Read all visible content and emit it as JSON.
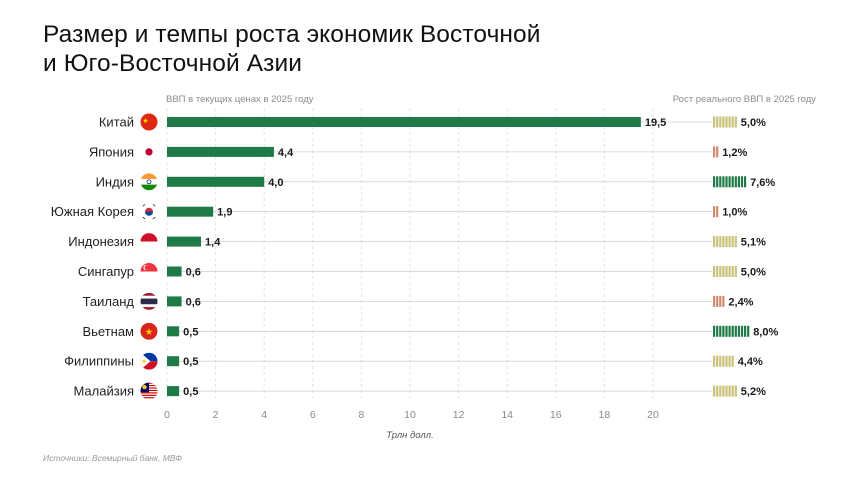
{
  "title_line1": "Размер и темпы роста экономик Восточной",
  "title_line2": "и Юго-Восточной Азии",
  "left_subtitle": "ВВП в текущих ценах в 2025 году",
  "right_subtitle": "Рост реального ВВП в 2025 году",
  "xlabel": "Трлн долл.",
  "source": "Источники: Всемирный банк, МВФ",
  "colors": {
    "bar": "#1e7a46",
    "growth_high": "#1e7a46",
    "growth_mid": "#c9c27a",
    "growth_low": "#d08a6f",
    "grid": "#d9d9d9"
  },
  "chart_data": {
    "type": "bar",
    "orientation": "horizontal",
    "categories": [
      "Китай",
      "Япония",
      "Индия",
      "Южная Корея",
      "Индонезия",
      "Сингапур",
      "Таиланд",
      "Вьетнам",
      "Филиппины",
      "Малайзия"
    ],
    "flags": [
      "china-flag-icon",
      "japan-flag-icon",
      "india-flag-icon",
      "south-korea-flag-icon",
      "indonesia-flag-icon",
      "singapore-flag-icon",
      "thailand-flag-icon",
      "vietnam-flag-icon",
      "philippines-flag-icon",
      "malaysia-flag-icon"
    ],
    "gdp_values": [
      19.5,
      4.4,
      4.0,
      1.9,
      1.4,
      0.6,
      0.6,
      0.5,
      0.5,
      0.5
    ],
    "gdp_labels": [
      "19,5",
      "4,4",
      "4,0",
      "1,9",
      "1,4",
      "0,6",
      "0,6",
      "0,5",
      "0,5",
      "0,5"
    ],
    "growth_values": [
      5.0,
      1.2,
      7.6,
      1.0,
      5.1,
      5.0,
      2.4,
      8.0,
      4.4,
      5.2
    ],
    "growth_labels": [
      "5,0%",
      "1,2%",
      "7,6%",
      "1,0%",
      "5,1%",
      "5,0%",
      "2,4%",
      "8,0%",
      "4,4%",
      "5,2%"
    ],
    "xticks": [
      "0",
      "2",
      "4",
      "6",
      "8",
      "10",
      "12",
      "14",
      "16",
      "18",
      "20"
    ],
    "xlim": [
      0,
      20
    ],
    "grid": true
  }
}
